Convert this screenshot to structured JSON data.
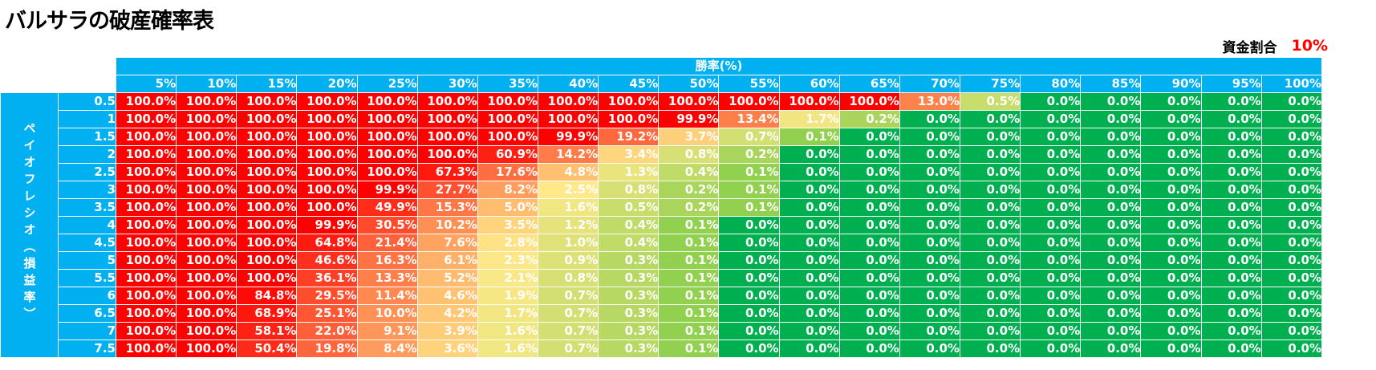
{
  "title": "バルサラの破産確率表",
  "fund": {
    "label": "資金割合",
    "value": "10%"
  },
  "chart_data": {
    "type": "heatmap",
    "xlabel": "勝率(%)",
    "ylabel": "ペイオフレシオ（損益率）",
    "x": [
      "5%",
      "10%",
      "15%",
      "20%",
      "25%",
      "30%",
      "35%",
      "40%",
      "45%",
      "50%",
      "55%",
      "60%",
      "65%",
      "70%",
      "75%",
      "80%",
      "85%",
      "90%",
      "95%",
      "100%"
    ],
    "y": [
      "0.5",
      "1",
      "1.5",
      "2",
      "2.5",
      "3",
      "3.5",
      "4",
      "4.5",
      "5",
      "5.5",
      "6",
      "6.5",
      "7",
      "7.5"
    ],
    "values": [
      [
        "100.0%",
        "100.0%",
        "100.0%",
        "100.0%",
        "100.0%",
        "100.0%",
        "100.0%",
        "100.0%",
        "100.0%",
        "100.0%",
        "100.0%",
        "100.0%",
        "100.0%",
        "13.0%",
        "0.5%",
        "0.0%",
        "0.0%",
        "0.0%",
        "0.0%",
        "0.0%"
      ],
      [
        "100.0%",
        "100.0%",
        "100.0%",
        "100.0%",
        "100.0%",
        "100.0%",
        "100.0%",
        "100.0%",
        "100.0%",
        "99.9%",
        "13.4%",
        "1.7%",
        "0.2%",
        "0.0%",
        "0.0%",
        "0.0%",
        "0.0%",
        "0.0%",
        "0.0%",
        "0.0%"
      ],
      [
        "100.0%",
        "100.0%",
        "100.0%",
        "100.0%",
        "100.0%",
        "100.0%",
        "100.0%",
        "99.9%",
        "19.2%",
        "3.7%",
        "0.7%",
        "0.1%",
        "0.0%",
        "0.0%",
        "0.0%",
        "0.0%",
        "0.0%",
        "0.0%",
        "0.0%",
        "0.0%"
      ],
      [
        "100.0%",
        "100.0%",
        "100.0%",
        "100.0%",
        "100.0%",
        "100.0%",
        "60.9%",
        "14.2%",
        "3.4%",
        "0.8%",
        "0.2%",
        "0.0%",
        "0.0%",
        "0.0%",
        "0.0%",
        "0.0%",
        "0.0%",
        "0.0%",
        "0.0%",
        "0.0%"
      ],
      [
        "100.0%",
        "100.0%",
        "100.0%",
        "100.0%",
        "100.0%",
        "67.3%",
        "17.6%",
        "4.8%",
        "1.3%",
        "0.4%",
        "0.1%",
        "0.0%",
        "0.0%",
        "0.0%",
        "0.0%",
        "0.0%",
        "0.0%",
        "0.0%",
        "0.0%",
        "0.0%"
      ],
      [
        "100.0%",
        "100.0%",
        "100.0%",
        "100.0%",
        "99.9%",
        "27.7%",
        "8.2%",
        "2.5%",
        "0.8%",
        "0.2%",
        "0.1%",
        "0.0%",
        "0.0%",
        "0.0%",
        "0.0%",
        "0.0%",
        "0.0%",
        "0.0%",
        "0.0%",
        "0.0%"
      ],
      [
        "100.0%",
        "100.0%",
        "100.0%",
        "100.0%",
        "49.9%",
        "15.3%",
        "5.0%",
        "1.6%",
        "0.5%",
        "0.2%",
        "0.1%",
        "0.0%",
        "0.0%",
        "0.0%",
        "0.0%",
        "0.0%",
        "0.0%",
        "0.0%",
        "0.0%",
        "0.0%"
      ],
      [
        "100.0%",
        "100.0%",
        "100.0%",
        "99.9%",
        "30.5%",
        "10.2%",
        "3.5%",
        "1.2%",
        "0.4%",
        "0.1%",
        "0.0%",
        "0.0%",
        "0.0%",
        "0.0%",
        "0.0%",
        "0.0%",
        "0.0%",
        "0.0%",
        "0.0%",
        "0.0%"
      ],
      [
        "100.0%",
        "100.0%",
        "100.0%",
        "64.8%",
        "21.4%",
        "7.6%",
        "2.8%",
        "1.0%",
        "0.4%",
        "0.1%",
        "0.0%",
        "0.0%",
        "0.0%",
        "0.0%",
        "0.0%",
        "0.0%",
        "0.0%",
        "0.0%",
        "0.0%",
        "0.0%"
      ],
      [
        "100.0%",
        "100.0%",
        "100.0%",
        "46.6%",
        "16.3%",
        "6.1%",
        "2.3%",
        "0.9%",
        "0.3%",
        "0.1%",
        "0.0%",
        "0.0%",
        "0.0%",
        "0.0%",
        "0.0%",
        "0.0%",
        "0.0%",
        "0.0%",
        "0.0%",
        "0.0%"
      ],
      [
        "100.0%",
        "100.0%",
        "100.0%",
        "36.1%",
        "13.3%",
        "5.2%",
        "2.1%",
        "0.8%",
        "0.3%",
        "0.1%",
        "0.0%",
        "0.0%",
        "0.0%",
        "0.0%",
        "0.0%",
        "0.0%",
        "0.0%",
        "0.0%",
        "0.0%",
        "0.0%"
      ],
      [
        "100.0%",
        "100.0%",
        "84.8%",
        "29.5%",
        "11.4%",
        "4.6%",
        "1.9%",
        "0.7%",
        "0.3%",
        "0.1%",
        "0.0%",
        "0.0%",
        "0.0%",
        "0.0%",
        "0.0%",
        "0.0%",
        "0.0%",
        "0.0%",
        "0.0%",
        "0.0%"
      ],
      [
        "100.0%",
        "100.0%",
        "68.9%",
        "25.1%",
        "10.0%",
        "4.2%",
        "1.7%",
        "0.7%",
        "0.3%",
        "0.1%",
        "0.0%",
        "0.0%",
        "0.0%",
        "0.0%",
        "0.0%",
        "0.0%",
        "0.0%",
        "0.0%",
        "0.0%",
        "0.0%"
      ],
      [
        "100.0%",
        "100.0%",
        "58.1%",
        "22.0%",
        "9.1%",
        "3.9%",
        "1.6%",
        "0.7%",
        "0.3%",
        "0.1%",
        "0.0%",
        "0.0%",
        "0.0%",
        "0.0%",
        "0.0%",
        "0.0%",
        "0.0%",
        "0.0%",
        "0.0%",
        "0.0%"
      ],
      [
        "100.0%",
        "100.0%",
        "50.4%",
        "19.8%",
        "8.4%",
        "3.6%",
        "1.6%",
        "0.7%",
        "0.3%",
        "0.1%",
        "0.0%",
        "0.0%",
        "0.0%",
        "0.0%",
        "0.0%",
        "0.0%",
        "0.0%",
        "0.0%",
        "0.0%",
        "0.0%"
      ]
    ],
    "colors": {
      "header": "#00b0f0",
      "high": "#ff0000",
      "mid": "#ffe98a",
      "low": "#00b050"
    }
  }
}
